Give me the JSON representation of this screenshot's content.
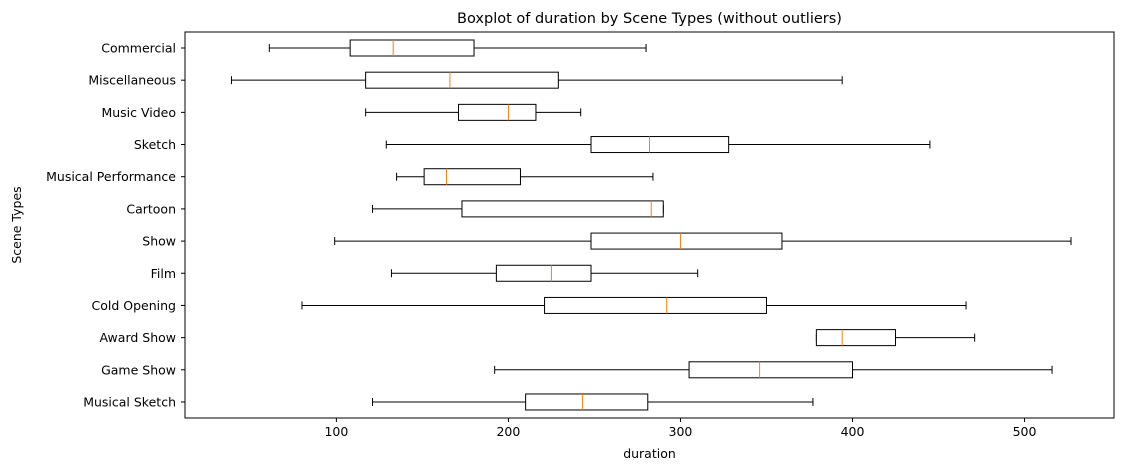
{
  "chart_data": {
    "type": "boxplot",
    "orientation": "horizontal",
    "title": "Boxplot of duration by Scene Types (without outliers)",
    "xlabel": "duration",
    "ylabel": "Scene Types",
    "xlim": [
      12,
      552
    ],
    "xticks": [
      100,
      200,
      300,
      400,
      500
    ],
    "grid": false,
    "colors": {
      "box": "#000000",
      "median": "#ff7f0e",
      "axes": "#000000"
    },
    "categories": [
      "Commercial",
      "Miscellaneous",
      "Music Video",
      "Sketch",
      "Musical Performance",
      "Cartoon",
      "Show",
      "Film",
      "Cold Opening",
      "Award Show",
      "Game Show",
      "Musical Sketch"
    ],
    "series": [
      {
        "category": "Commercial",
        "whislo": 61,
        "q1": 108,
        "med": 133,
        "q3": 180,
        "whishi": 280
      },
      {
        "category": "Miscellaneous",
        "whislo": 39,
        "q1": 117,
        "med": 166,
        "q3": 229,
        "whishi": 394
      },
      {
        "category": "Music Video",
        "whislo": 117,
        "q1": 171,
        "med": 200,
        "q3": 216,
        "whishi": 242
      },
      {
        "category": "Sketch",
        "whislo": 129,
        "q1": 248,
        "med": 282,
        "q3": 328,
        "whishi": 445
      },
      {
        "category": "Musical Performance",
        "whislo": 135,
        "q1": 151,
        "med": 164,
        "q3": 207,
        "whishi": 284
      },
      {
        "category": "Cartoon",
        "whislo": 121,
        "q1": 173,
        "med": 283,
        "q3": 290,
        "whishi": 290
      },
      {
        "category": "Show",
        "whislo": 99,
        "q1": 248,
        "med": 300,
        "q3": 359,
        "whishi": 527
      },
      {
        "category": "Film",
        "whislo": 132,
        "q1": 193,
        "med": 225,
        "q3": 248,
        "whishi": 310
      },
      {
        "category": "Cold Opening",
        "whislo": 80,
        "q1": 221,
        "med": 292,
        "q3": 350,
        "whishi": 466
      },
      {
        "category": "Award Show",
        "whislo": 379,
        "q1": 379,
        "med": 394,
        "q3": 425,
        "whishi": 471
      },
      {
        "category": "Game Show",
        "whislo": 192,
        "q1": 305,
        "med": 346,
        "q3": 400,
        "whishi": 516
      },
      {
        "category": "Musical Sketch",
        "whislo": 121,
        "q1": 210,
        "med": 243,
        "q3": 281,
        "whishi": 377
      }
    ]
  }
}
